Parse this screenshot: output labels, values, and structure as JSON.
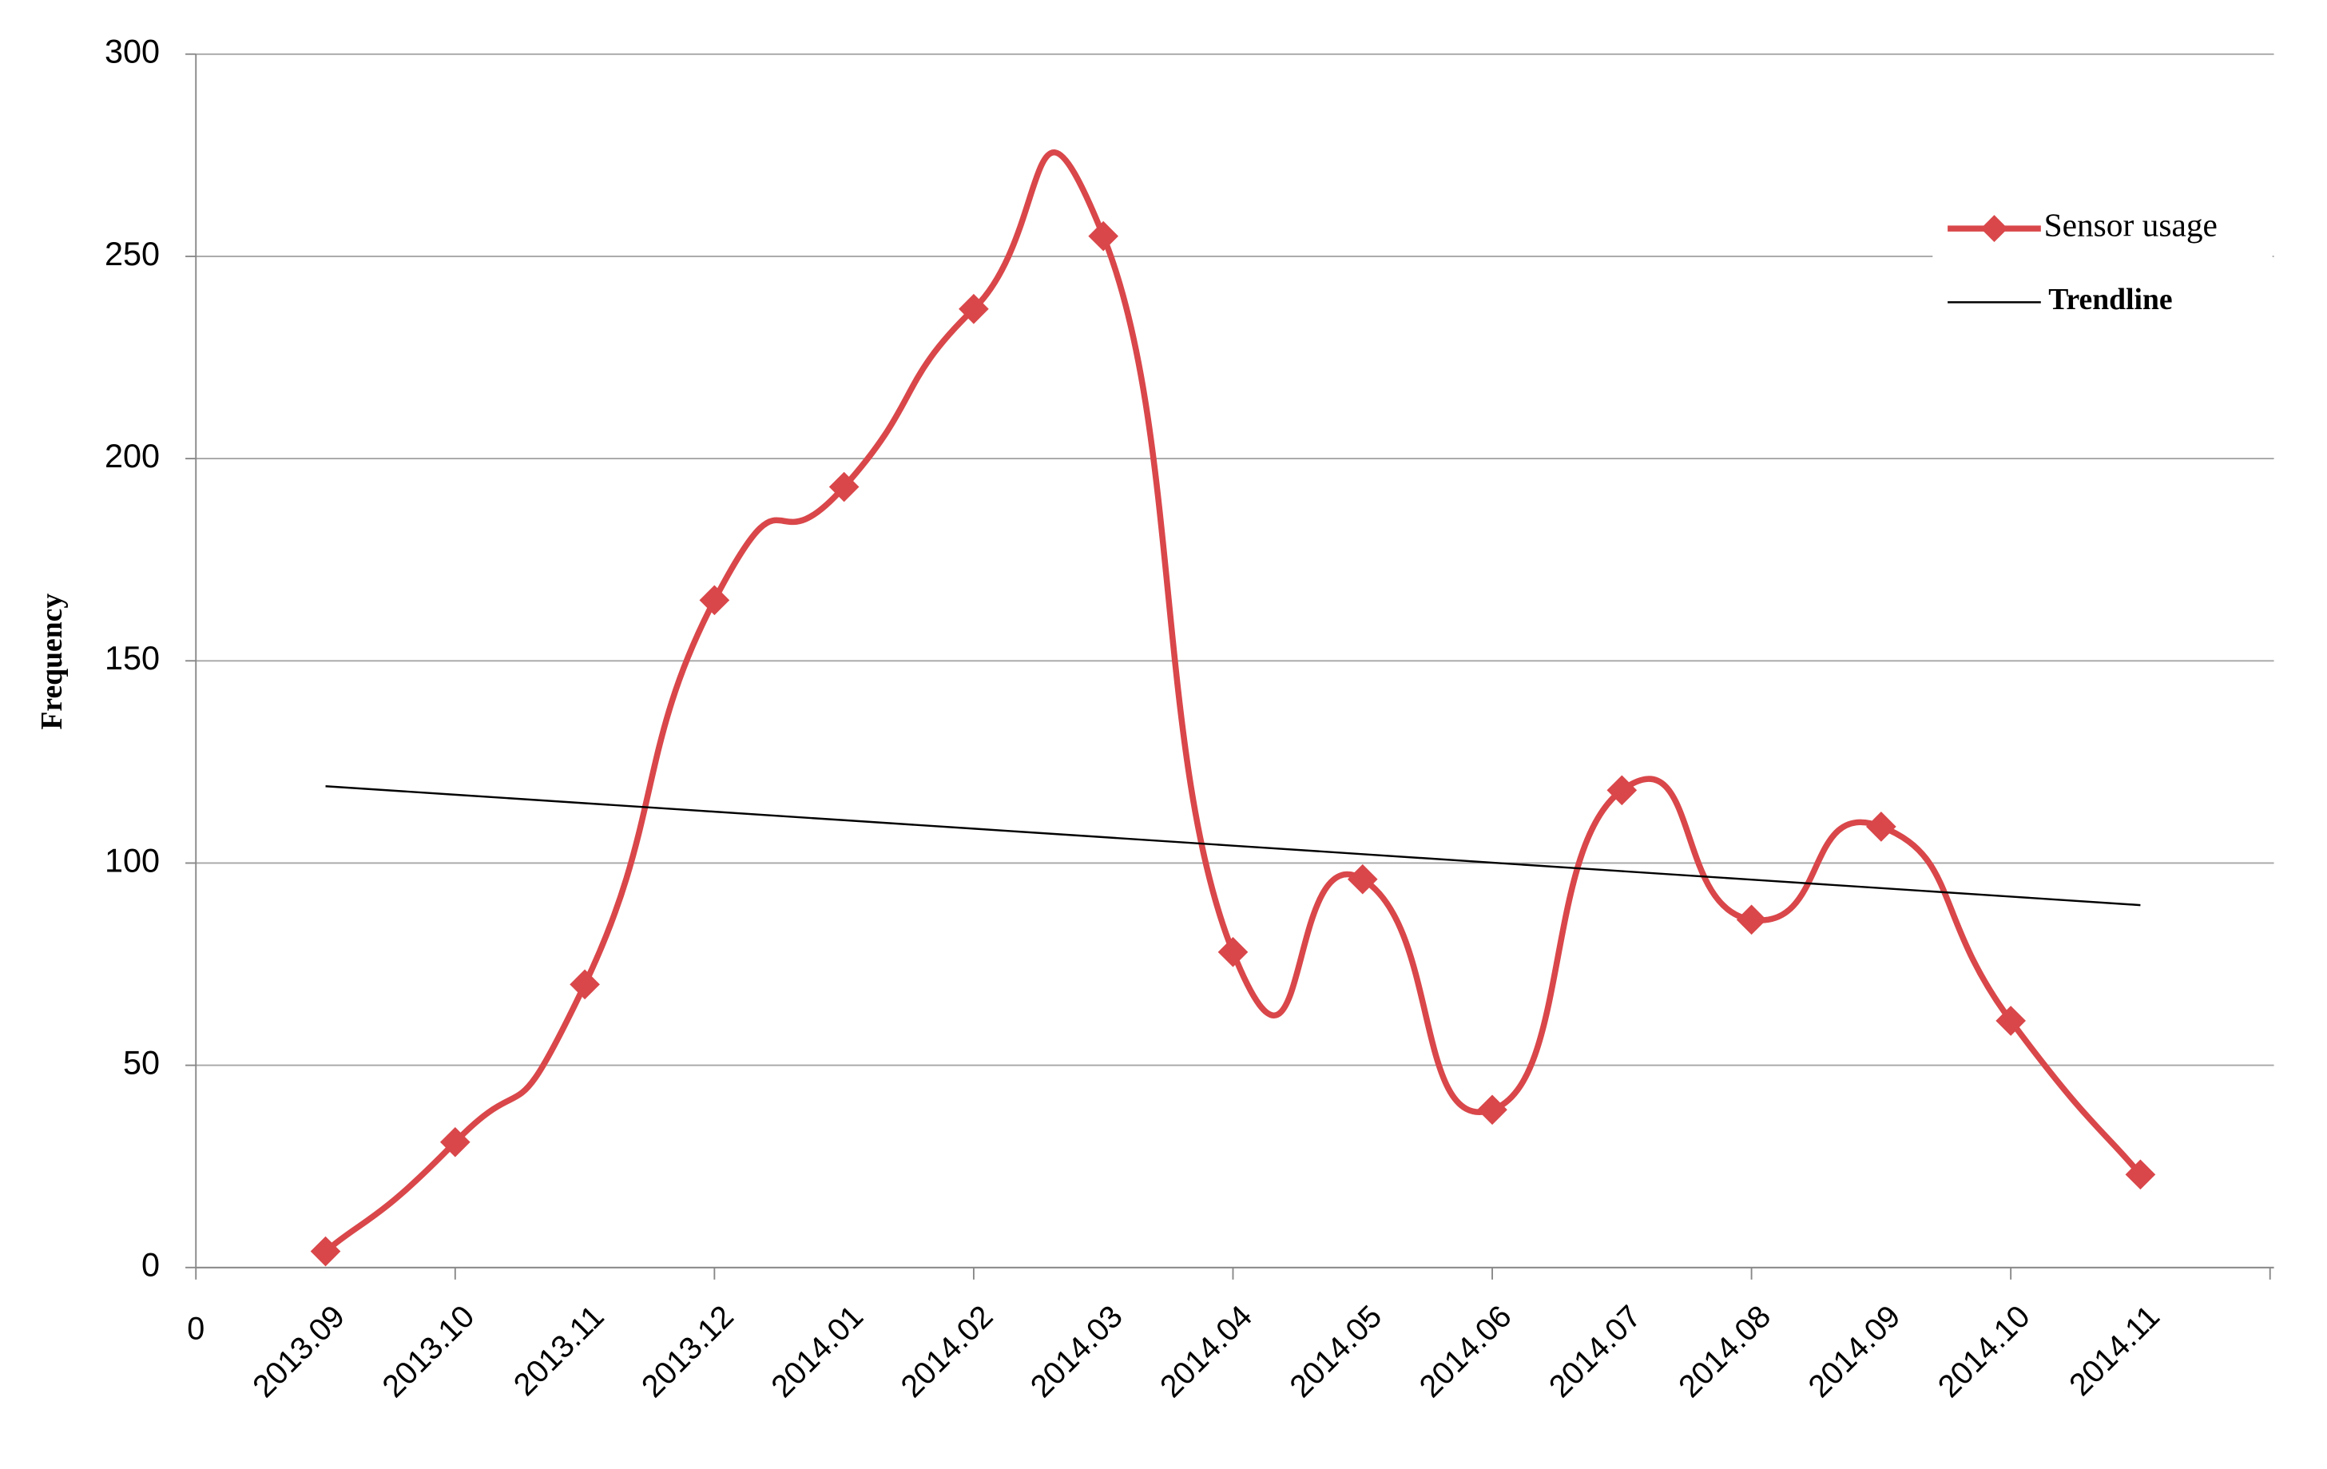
{
  "chart_data": {
    "type": "line",
    "ylabel": "Frequency",
    "categories": [
      "0",
      "2013.09",
      "2013.10",
      "2013.11",
      "2013.12",
      "2014.01",
      "2014.02",
      "2014.03",
      "2014.04",
      "2014.05",
      "2014.06",
      "2014.07",
      "2014.08",
      "2014.09",
      "2014.10",
      "2014.11"
    ],
    "series": [
      {
        "name": "Sensor usage",
        "color": "#d9474a",
        "smooth": true,
        "marker": "diamond",
        "values": [
          null,
          4,
          31,
          70,
          165,
          193,
          237,
          255,
          78,
          96,
          39,
          118,
          86,
          109,
          61,
          23
        ]
      },
      {
        "name": "Trendline",
        "color": "#000000",
        "smooth": false,
        "marker": null,
        "values": [
          null,
          119,
          116.9,
          114.8,
          112.7,
          110.6,
          108.5,
          106.4,
          104.3,
          102.2,
          100.1,
          98,
          95.9,
          93.8,
          91.7,
          89.6
        ]
      }
    ],
    "ylim": [
      0,
      300
    ],
    "yticks": [
      0,
      50,
      100,
      150,
      200,
      250,
      300
    ],
    "grid": true,
    "legend": "upper right"
  }
}
